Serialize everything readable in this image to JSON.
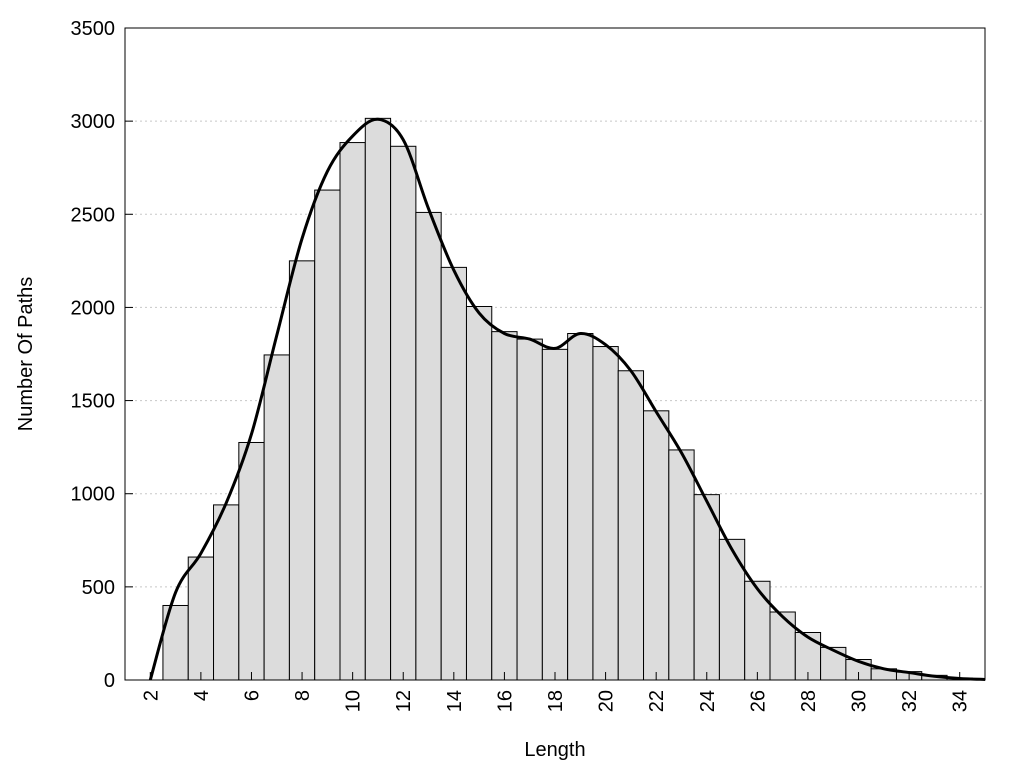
{
  "chart_data": {
    "type": "histogram",
    "xlabel": "Length",
    "ylabel": "Number Of Paths",
    "bins": [
      2.5,
      3.5,
      4.5,
      5.5,
      6.5,
      7.5,
      8.5,
      9.5,
      10.5,
      11.5,
      12.5,
      13.5,
      14.5,
      15.5,
      16.5,
      17.5,
      18.5,
      19.5,
      20.5,
      21.5,
      22.5,
      23.5,
      24.5,
      25.5,
      26.5,
      27.5,
      28.5,
      29.5,
      30.5,
      31.5,
      32.5,
      33.5,
      34.5
    ],
    "values": [
      400,
      660,
      940,
      1275,
      1745,
      2250,
      2630,
      2885,
      3015,
      2865,
      2510,
      2215,
      2005,
      1870,
      1830,
      1775,
      1860,
      1790,
      1660,
      1445,
      1235,
      995,
      755,
      530,
      365,
      255,
      175,
      110,
      60,
      45,
      25,
      10
    ],
    "color": "#dcdcdc",
    "line": {
      "x": [
        2,
        3,
        4,
        5,
        6,
        7,
        8,
        9,
        10,
        11,
        12,
        13,
        14,
        15,
        16,
        17,
        18,
        19,
        20,
        21,
        22,
        23,
        24,
        25,
        26,
        27,
        28,
        29,
        30,
        31,
        32,
        33,
        34,
        35
      ],
      "values": [
        0,
        470,
        680,
        950,
        1320,
        1850,
        2370,
        2730,
        2920,
        3010,
        2900,
        2530,
        2200,
        1970,
        1860,
        1830,
        1780,
        1860,
        1800,
        1660,
        1440,
        1220,
        960,
        700,
        490,
        340,
        230,
        160,
        100,
        60,
        40,
        20,
        8,
        3
      ],
      "color": "#000000"
    },
    "xlim": [
      1,
      35
    ],
    "ylim": [
      0,
      3500
    ],
    "xticks": [
      2,
      4,
      6,
      8,
      10,
      12,
      14,
      16,
      18,
      20,
      22,
      24,
      26,
      28,
      30,
      32,
      34
    ],
    "yticks": [
      0,
      500,
      1000,
      1500,
      2000,
      2500,
      3000,
      3500
    ],
    "grid": true
  }
}
